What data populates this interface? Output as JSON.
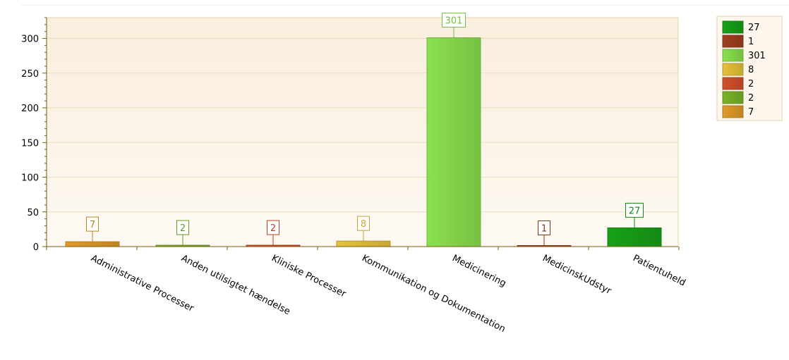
{
  "chart_data": {
    "type": "bar",
    "title": "",
    "xlabel": "",
    "ylabel": "",
    "ylim": [
      0,
      330
    ],
    "yticks": [
      0,
      50,
      100,
      150,
      200,
      250,
      300
    ],
    "grid": true,
    "legend_position": "top-right",
    "categories": [
      "Administrative Processer",
      "Anden utilsigtet hændelse",
      "Kliniske Processer",
      "Kommunikation og Dokumentation",
      "Medicinering",
      "MedicinskUdstyr",
      "Patientuheld"
    ],
    "values": [
      7,
      2,
      2,
      8,
      301,
      1,
      27
    ],
    "colors": [
      "#e09a28",
      "#78b428",
      "#d2502a",
      "#e6c23a",
      "#8ae04e",
      "#a0401e",
      "#18a018"
    ],
    "value_labels": [
      "7",
      "2",
      "2",
      "8",
      "301",
      "1",
      "27"
    ],
    "legend": [
      {
        "label": "27",
        "color": "#18a018"
      },
      {
        "label": "1",
        "color": "#a0401e"
      },
      {
        "label": "301",
        "color": "#8ae04e"
      },
      {
        "label": "8",
        "color": "#e6c23a"
      },
      {
        "label": "2",
        "color": "#d2502a"
      },
      {
        "label": "2",
        "color": "#78b428"
      },
      {
        "label": "7",
        "color": "#e09a28"
      }
    ]
  }
}
